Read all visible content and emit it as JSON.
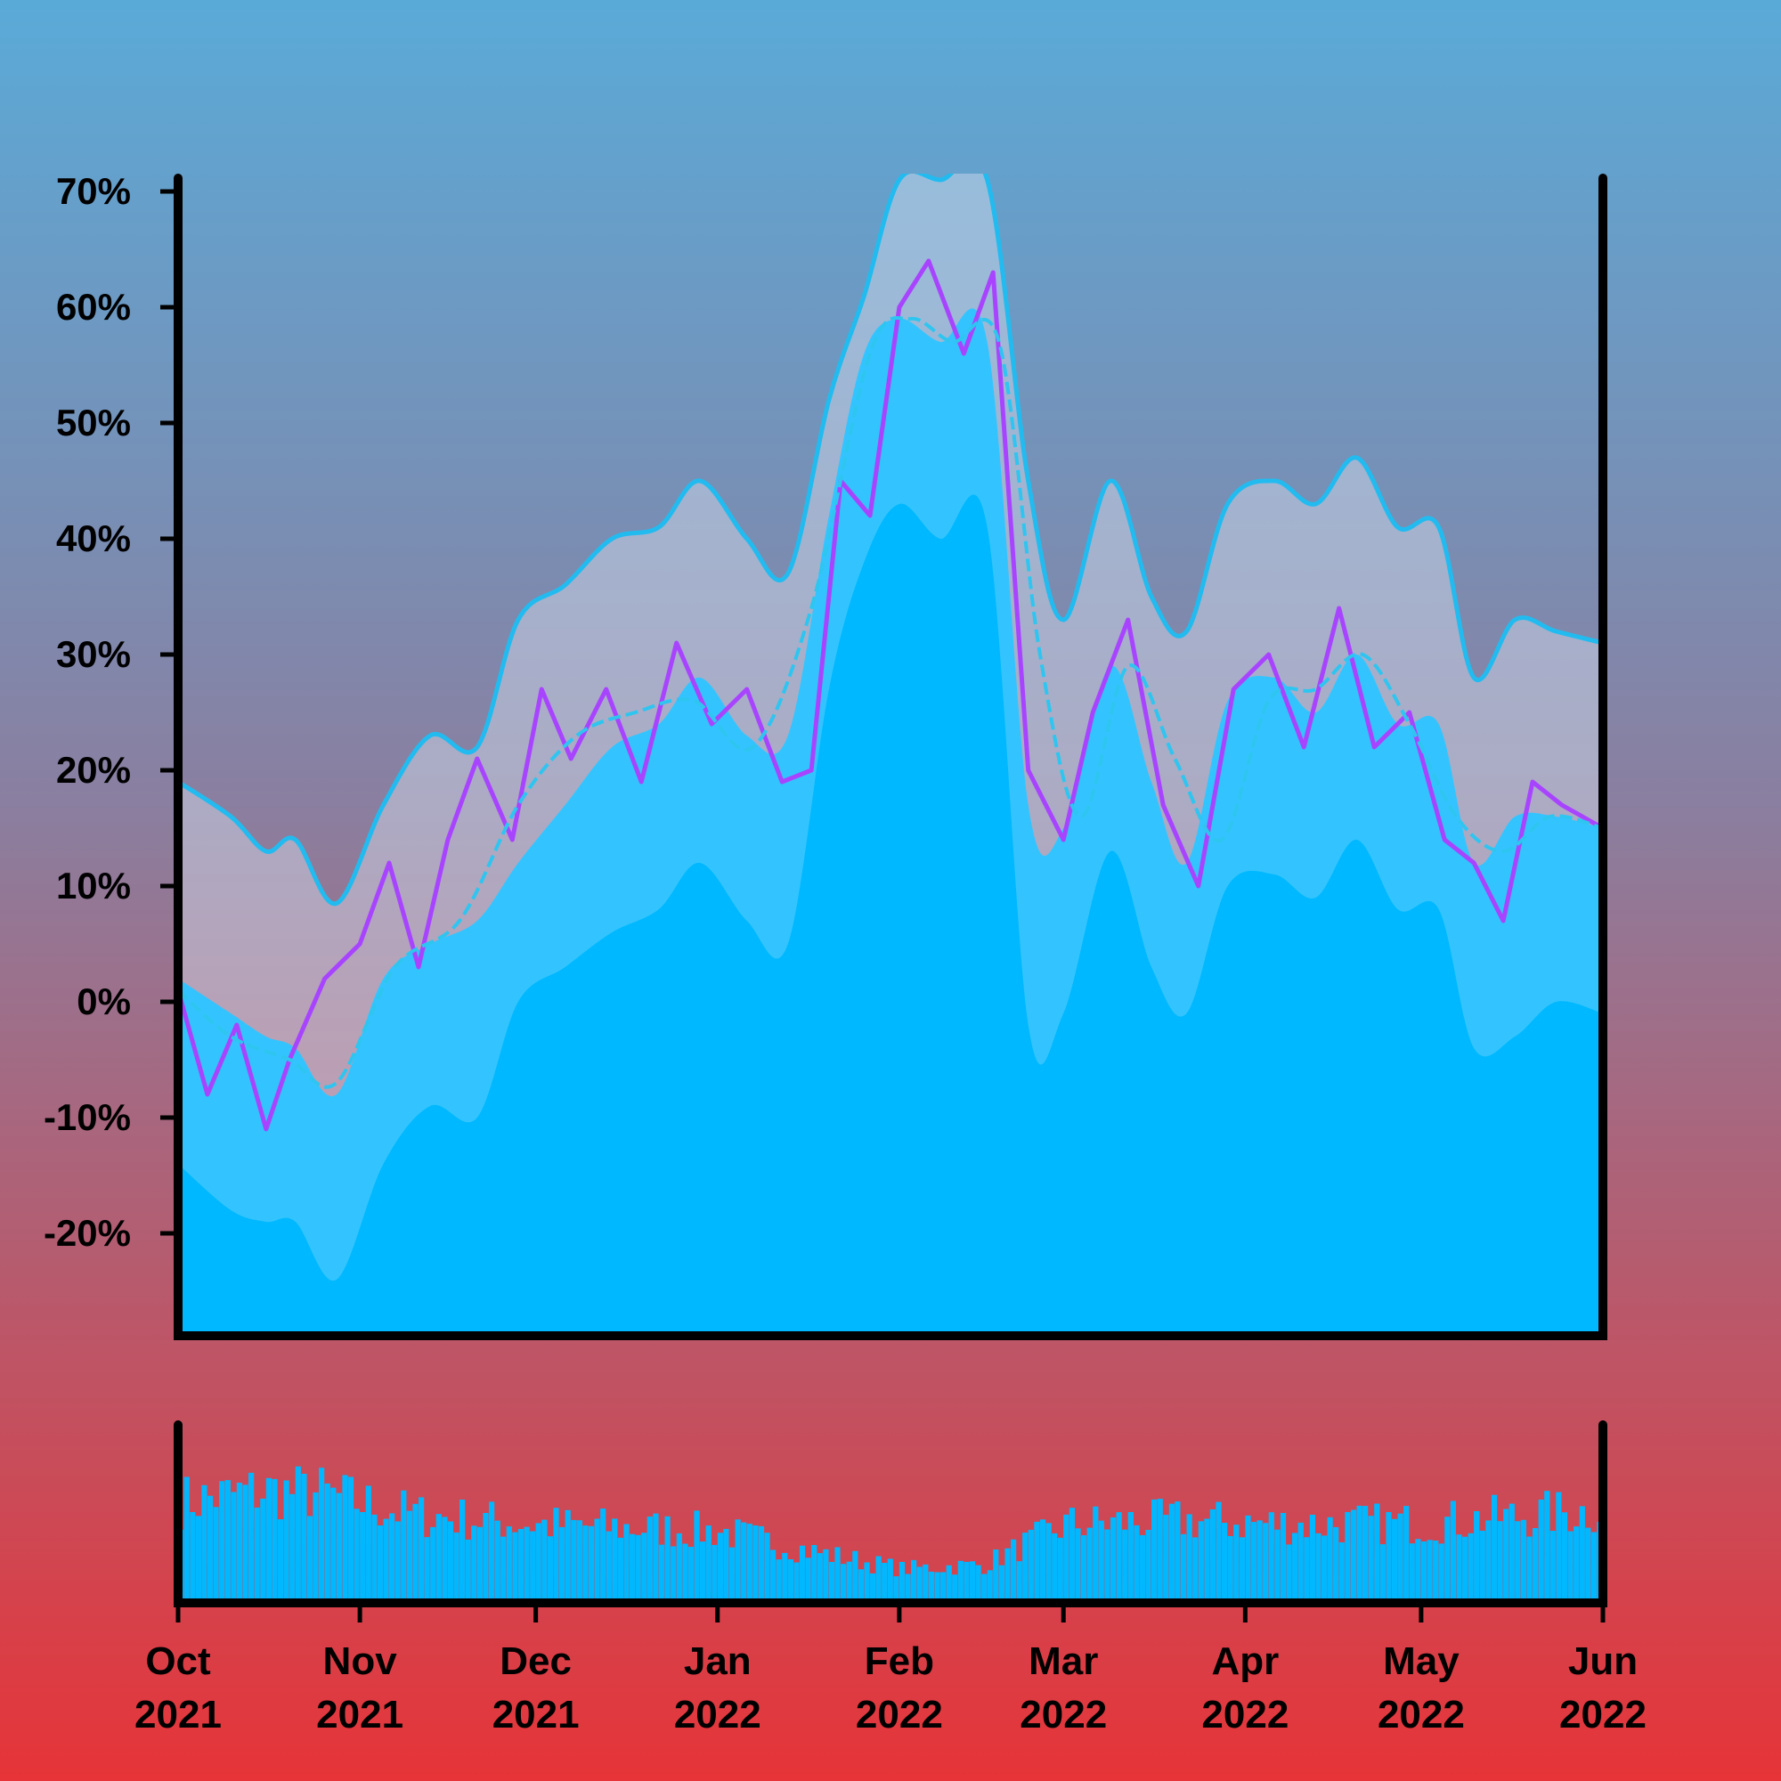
{
  "colors": {
    "background_top": "#5aaad8",
    "background_mid": "#8a7fa0",
    "background_bottom": "#e63438",
    "band_outer": "#d8dff0",
    "band_outer_stroke": "#22bbf0",
    "band_mid": "#33c4ff",
    "band_inner": "#00b8ff",
    "price_line": "#a844ff",
    "moving_average": "#2ec5f0",
    "volume_bars": "#00b8ff",
    "axis": "#000000"
  },
  "chart_data": [
    {
      "type": "area",
      "title": "",
      "xlabel": "",
      "ylabel": "",
      "ylim": [
        -28,
        70
      ],
      "y_ticks": [
        70,
        60,
        50,
        40,
        30,
        20,
        10,
        0,
        -10,
        -20
      ],
      "y_tick_labels": [
        "70%",
        "60%",
        "50%",
        "40%",
        "30%",
        "20%",
        "10%",
        "0%",
        "-10%",
        "-20%"
      ],
      "x_range": [
        "2021-10-01",
        "2022-06-01"
      ],
      "x_ticks": [
        "2021-10-01",
        "2021-11-01",
        "2021-12-01",
        "2022-01-01",
        "2022-02-01",
        "2022-03-01",
        "2022-04-01",
        "2022-05-01",
        "2022-06-01"
      ],
      "x_tick_labels": [
        [
          "Oct",
          "2021"
        ],
        [
          "Nov",
          "2021"
        ],
        [
          "Dec",
          "2021"
        ],
        [
          "Jan",
          "2022"
        ],
        [
          "Feb",
          "2022"
        ],
        [
          "Mar",
          "2022"
        ],
        [
          "Apr",
          "2022"
        ],
        [
          "May",
          "2022"
        ],
        [
          "Jun",
          "2022"
        ]
      ],
      "grid": false,
      "series": [
        {
          "role": "upper-band",
          "x": [
            "2021-10-01",
            "2021-10-10",
            "2021-10-16",
            "2021-10-21",
            "2021-10-28",
            "2021-11-05",
            "2021-11-13",
            "2021-11-21",
            "2021-11-28",
            "2021-12-06",
            "2021-12-14",
            "2021-12-22",
            "2021-12-29",
            "2022-01-06",
            "2022-01-13",
            "2022-01-20",
            "2022-01-26",
            "2022-02-01",
            "2022-02-08",
            "2022-02-16",
            "2022-02-23",
            "2022-03-01",
            "2022-03-09",
            "2022-03-16",
            "2022-03-22",
            "2022-03-29",
            "2022-04-06",
            "2022-04-13",
            "2022-04-20",
            "2022-04-27",
            "2022-05-04",
            "2022-05-10",
            "2022-05-17",
            "2022-05-24",
            "2022-06-01"
          ],
          "values": [
            19,
            16,
            13,
            14,
            8.5,
            17,
            23,
            22,
            33,
            36,
            40,
            41,
            45,
            40,
            37,
            52,
            61,
            71,
            71,
            71,
            45,
            33,
            45,
            35,
            32,
            43,
            45,
            43,
            47,
            41,
            41,
            28,
            33,
            32,
            31
          ]
        },
        {
          "role": "middle-band",
          "x": [
            "2021-10-01",
            "2021-10-10",
            "2021-10-16",
            "2021-10-21",
            "2021-10-28",
            "2021-11-05",
            "2021-11-13",
            "2021-11-21",
            "2021-11-28",
            "2021-12-06",
            "2021-12-14",
            "2021-12-22",
            "2021-12-29",
            "2022-01-06",
            "2022-01-13",
            "2022-01-20",
            "2022-01-26",
            "2022-02-01",
            "2022-02-08",
            "2022-02-16",
            "2022-02-23",
            "2022-03-01",
            "2022-03-09",
            "2022-03-16",
            "2022-03-22",
            "2022-03-29",
            "2022-04-06",
            "2022-04-13",
            "2022-04-20",
            "2022-04-27",
            "2022-05-04",
            "2022-05-10",
            "2022-05-17",
            "2022-05-24",
            "2022-06-01"
          ],
          "values": [
            2,
            -1,
            -3,
            -4,
            -8,
            2,
            5,
            7,
            12,
            17,
            22,
            24,
            28,
            23,
            23,
            42,
            56,
            59,
            57,
            57,
            17,
            15,
            29,
            19,
            12,
            26,
            28,
            25,
            30,
            24,
            24,
            12,
            16,
            16,
            15
          ]
        },
        {
          "role": "lower-band",
          "x": [
            "2021-10-01",
            "2021-10-10",
            "2021-10-16",
            "2021-10-21",
            "2021-10-28",
            "2021-11-05",
            "2021-11-13",
            "2021-11-21",
            "2021-11-28",
            "2021-12-06",
            "2021-12-14",
            "2021-12-22",
            "2021-12-29",
            "2022-01-06",
            "2022-01-13",
            "2022-01-20",
            "2022-01-26",
            "2022-02-01",
            "2022-02-08",
            "2022-02-16",
            "2022-02-23",
            "2022-03-01",
            "2022-03-09",
            "2022-03-16",
            "2022-03-22",
            "2022-03-29",
            "2022-04-06",
            "2022-04-13",
            "2022-04-20",
            "2022-04-27",
            "2022-05-04",
            "2022-05-10",
            "2022-05-17",
            "2022-05-24",
            "2022-06-01"
          ],
          "values": [
            -14,
            -18,
            -19,
            -19,
            -24,
            -14,
            -9,
            -10,
            0,
            3,
            6,
            8,
            12,
            7,
            5,
            27,
            38,
            43,
            40,
            41,
            -2,
            -1,
            13,
            3,
            -1,
            10,
            11,
            9,
            14,
            8,
            8,
            -4,
            -3,
            0,
            -1
          ]
        },
        {
          "role": "price",
          "x": [
            "2021-10-01",
            "2021-10-06",
            "2021-10-11",
            "2021-10-16",
            "2021-10-20",
            "2021-10-26",
            "2021-11-01",
            "2021-11-06",
            "2021-11-11",
            "2021-11-16",
            "2021-11-21",
            "2021-11-27",
            "2021-12-02",
            "2021-12-07",
            "2021-12-13",
            "2021-12-19",
            "2021-12-25",
            "2021-12-31",
            "2022-01-06",
            "2022-01-12",
            "2022-01-17",
            "2022-01-22",
            "2022-01-27",
            "2022-02-01",
            "2022-02-06",
            "2022-02-12",
            "2022-02-17",
            "2022-02-23",
            "2022-03-01",
            "2022-03-06",
            "2022-03-12",
            "2022-03-18",
            "2022-03-24",
            "2022-03-30",
            "2022-04-05",
            "2022-04-11",
            "2022-04-17",
            "2022-04-23",
            "2022-04-29",
            "2022-05-05",
            "2022-05-10",
            "2022-05-15",
            "2022-05-20",
            "2022-05-25",
            "2022-06-01"
          ],
          "values": [
            1,
            -8,
            -2,
            -11,
            -5,
            2,
            5,
            12,
            3,
            14,
            21,
            14,
            27,
            21,
            27,
            19,
            31,
            24,
            27,
            19,
            20,
            45,
            42,
            60,
            64,
            56,
            63,
            20,
            14,
            25,
            33,
            17,
            10,
            27,
            30,
            22,
            34,
            22,
            25,
            14,
            12,
            7,
            19,
            17,
            15
          ]
        },
        {
          "role": "moving-average",
          "x": [
            "2021-10-01",
            "2021-10-10",
            "2021-10-20",
            "2021-10-28",
            "2021-11-07",
            "2021-11-18",
            "2021-11-28",
            "2021-12-08",
            "2021-12-18",
            "2021-12-28",
            "2022-01-07",
            "2022-01-17",
            "2022-01-27",
            "2022-02-03",
            "2022-02-10",
            "2022-02-18",
            "2022-02-25",
            "2022-03-04",
            "2022-03-12",
            "2022-03-20",
            "2022-03-28",
            "2022-04-05",
            "2022-04-13",
            "2022-04-21",
            "2022-04-29",
            "2022-05-07",
            "2022-05-15",
            "2022-05-23",
            "2022-06-01"
          ],
          "values": [
            1,
            -3,
            -5,
            -7,
            3,
            7,
            17,
            23,
            25,
            26,
            22,
            34,
            56,
            59,
            57,
            57,
            30,
            16,
            29,
            21,
            14,
            26,
            27,
            30,
            24,
            16,
            13,
            16,
            15
          ]
        }
      ]
    },
    {
      "type": "bar",
      "role": "volume",
      "title": "",
      "x_range": [
        "2021-10-01",
        "2022-06-01"
      ],
      "envelope": {
        "x": [
          "2021-10-01",
          "2021-10-15",
          "2021-10-25",
          "2021-11-10",
          "2021-12-01",
          "2022-01-01",
          "2022-01-20",
          "2022-02-01",
          "2022-02-15",
          "2022-03-01",
          "2022-03-20",
          "2022-04-10",
          "2022-05-01",
          "2022-05-20",
          "2022-06-01"
        ],
        "relative_height": [
          0.72,
          0.8,
          0.78,
          0.62,
          0.55,
          0.5,
          0.32,
          0.22,
          0.25,
          0.55,
          0.58,
          0.55,
          0.56,
          0.62,
          0.66
        ]
      }
    }
  ]
}
